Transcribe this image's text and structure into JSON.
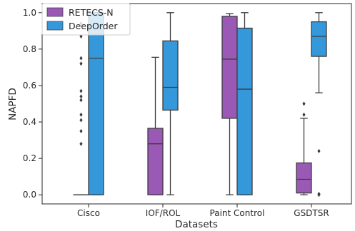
{
  "chart_data": {
    "type": "boxplot",
    "xlabel": "Datasets",
    "ylabel": "NAPFD",
    "ylim": [
      -0.05,
      1.05
    ],
    "yticks": [
      "0.0",
      "0.2",
      "0.4",
      "0.6",
      "0.8",
      "1.0"
    ],
    "categories": [
      "Cisco",
      "IOF/ROL",
      "Paint Control",
      "GSDTSR"
    ],
    "legend_position": "top-left",
    "series": [
      {
        "name": "RETECS-N",
        "color": "#9b59b6",
        "boxes": [
          {
            "whislo": 0.0,
            "q1": 0.0,
            "med": 0.0,
            "q3": 0.0,
            "whishi": 0.0,
            "fliers": [
              0.28,
              0.35,
              0.41,
              0.44,
              0.52,
              0.54,
              0.57,
              0.72,
              0.75,
              0.87,
              0.94
            ]
          },
          {
            "whislo": 0.0,
            "q1": 0.0,
            "med": 0.28,
            "q3": 0.365,
            "whishi": 0.755,
            "fliers": []
          },
          {
            "whislo": 0.0,
            "q1": 0.42,
            "med": 0.745,
            "q3": 0.98,
            "whishi": 0.995,
            "fliers": []
          },
          {
            "whislo": 0.0,
            "q1": 0.01,
            "med": 0.085,
            "q3": 0.175,
            "whishi": 0.42,
            "fliers": [
              0.44,
              0.5
            ]
          }
        ]
      },
      {
        "name": "DeepOrder",
        "color": "#3498db",
        "boxes": [
          {
            "whislo": 0.0,
            "q1": 0.0,
            "med": 0.75,
            "q3": 1.0,
            "whishi": 1.0,
            "fliers": []
          },
          {
            "whislo": 0.0,
            "q1": 0.465,
            "med": 0.59,
            "q3": 0.845,
            "whishi": 1.0,
            "fliers": []
          },
          {
            "whislo": 0.0,
            "q1": 0.0,
            "med": 0.58,
            "q3": 0.915,
            "whishi": 1.0,
            "fliers": []
          },
          {
            "whislo": 0.56,
            "q1": 0.76,
            "med": 0.87,
            "q3": 0.95,
            "whishi": 1.0,
            "fliers": [
              0.0,
              0.005,
              0.24
            ]
          }
        ]
      }
    ]
  }
}
